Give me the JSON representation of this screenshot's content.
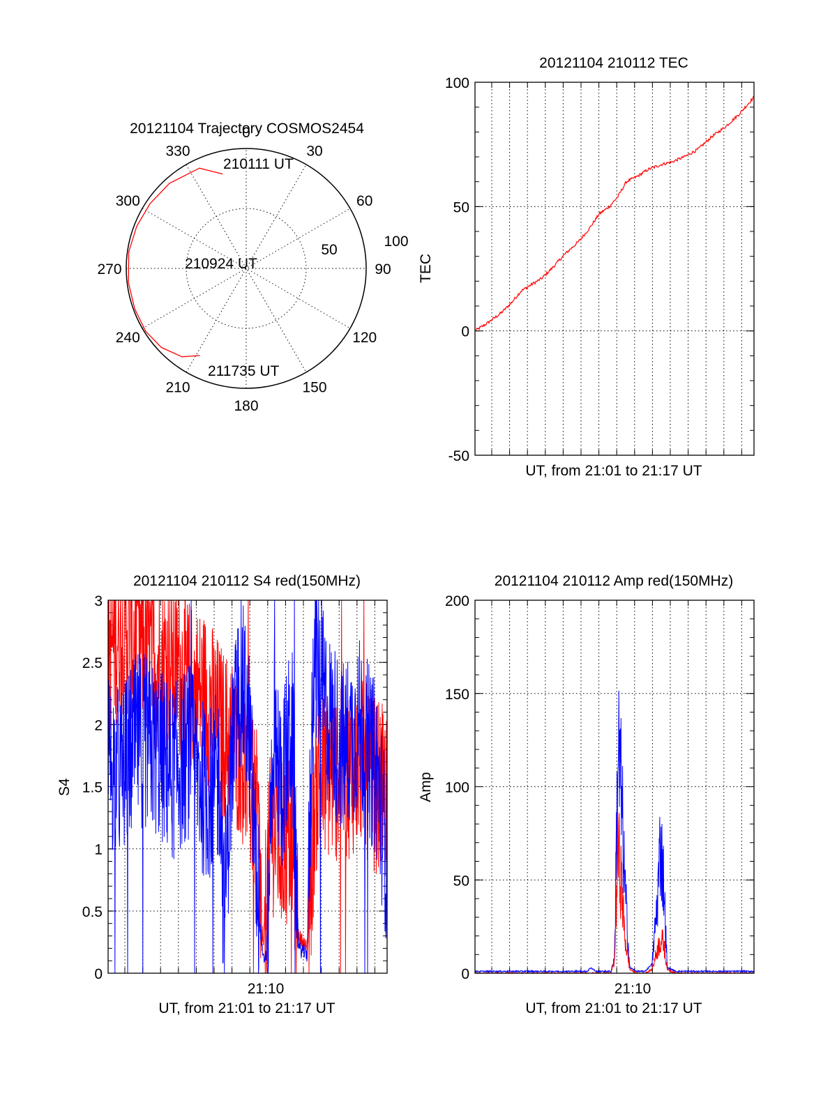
{
  "colors": {
    "red": "#ff0000",
    "blue": "#0000ff",
    "axis": "#000000"
  },
  "chart_data": [
    {
      "type": "polar",
      "id": "trajectory",
      "title": "20121104 Trajectory COSMOS2454",
      "angle_labels": [
        "0",
        "30",
        "60",
        "90",
        "120",
        "150",
        "180",
        "210",
        "240",
        "270",
        "300",
        "330"
      ],
      "radial_labels": [
        "50",
        "100"
      ],
      "radial_range": [
        0,
        100
      ],
      "annotations": [
        "210111 UT",
        "210924 UT",
        "211735 UT"
      ],
      "series": [
        {
          "color": "red",
          "az_el": [
            [
              346,
              17
            ],
            [
              335,
              7
            ],
            [
              318,
              4
            ],
            [
              304,
              3
            ],
            [
              291,
              2
            ],
            [
              278,
              1
            ],
            [
              263,
              1
            ],
            [
              250,
              1
            ],
            [
              238,
              1
            ],
            [
              227,
              3
            ],
            [
              216,
              8
            ],
            [
              208,
              16
            ]
          ]
        }
      ]
    },
    {
      "type": "line",
      "id": "tec",
      "title": "20121104 210112 TEC",
      "xlabel": "UT, from 21:01 to 21:17 UT",
      "ylabel": "TEC",
      "ylim": [
        -50,
        100
      ],
      "yticks": [
        "-50",
        "0",
        "50",
        "100"
      ],
      "grid": true,
      "xrange_minutes": [
        1.2,
        17.6
      ],
      "series": [
        {
          "color": "red",
          "x": [
            1.2,
            1.9,
            2.7,
            3.3,
            3.9,
            4.6,
            5.1,
            5.7,
            6.5,
            7.3,
            7.9,
            8.5,
            9.1,
            9.6,
            10.1,
            10.7,
            11.4,
            12.2,
            12.8,
            13.5,
            14.3,
            15.1,
            15.9,
            16.7,
            17.6
          ],
          "y": [
            0,
            3,
            7,
            11,
            16,
            19,
            21,
            25,
            31,
            36,
            41,
            47,
            50,
            54,
            60,
            62,
            65,
            67,
            68,
            70,
            73,
            78,
            82,
            87,
            94
          ]
        }
      ]
    },
    {
      "type": "line",
      "id": "s4",
      "title": "20121104 210112 S4 red(150MHz)",
      "xlabel": "UT, from 21:01 to 21:17 UT",
      "ylabel": "S4",
      "ylim": [
        0,
        3
      ],
      "yticks": [
        "0",
        "0.5",
        "1",
        "1.5",
        "2",
        "2.5",
        "3"
      ],
      "xtick_label": "21:10",
      "grid": true,
      "xrange_minutes": [
        1.2,
        17.6
      ],
      "series": [
        {
          "color": "red",
          "x": [
            1.2,
            2.0,
            3.0,
            4.0,
            5.0,
            6.0,
            7.0,
            8.0,
            9.0,
            9.5,
            10.0,
            10.3,
            10.8,
            11.4,
            12.0,
            12.4,
            12.9,
            13.4,
            14.0,
            15.0,
            16.0,
            17.0,
            17.6
          ],
          "y": [
            2.6,
            2.8,
            2.7,
            2.5,
            2.5,
            2.3,
            2.2,
            1.9,
            1.8,
            1.5,
            1.2,
            0.2,
            1.2,
            1.0,
            1.1,
            0.3,
            0.2,
            1.5,
            1.6,
            1.6,
            1.7,
            1.5,
            1.4
          ]
        },
        {
          "color": "blue",
          "x": [
            1.2,
            2.0,
            3.0,
            4.0,
            5.0,
            6.0,
            7.0,
            7.8,
            8.0,
            8.5,
            9.0,
            9.5,
            10.0,
            10.3,
            10.5,
            10.9,
            11.4,
            12.0,
            12.4,
            12.9,
            13.3,
            14.0,
            15.0,
            16.0,
            17.0,
            17.6
          ],
          "y": [
            1.7,
            1.6,
            1.9,
            1.8,
            1.6,
            1.8,
            1.4,
            1.6,
            0.45,
            1.8,
            2.4,
            1.9,
            0.6,
            0.1,
            0.15,
            1.9,
            1.5,
            2.0,
            0.2,
            0.15,
            2.7,
            2.1,
            1.8,
            2.0,
            1.6,
            0.9
          ]
        }
      ]
    },
    {
      "type": "line",
      "id": "amp",
      "title": "20121104 210112 Amp red(150MHz)",
      "xlabel": "UT, from 21:01 to 21:17 UT",
      "ylabel": "Amp",
      "ylim": [
        0,
        200
      ],
      "yticks": [
        "0",
        "50",
        "100",
        "150",
        "200"
      ],
      "xtick_label": "21:10",
      "grid": true,
      "xrange_minutes": [
        1.2,
        17.6
      ],
      "series": [
        {
          "color": "red",
          "x": [
            1.2,
            8.5,
            9.2,
            9.4,
            9.6,
            9.8,
            10.0,
            10.3,
            10.7,
            11.2,
            11.6,
            11.9,
            12.1,
            12.3,
            12.5,
            13.0,
            17.6
          ],
          "y": [
            0,
            0,
            0,
            8,
            85,
            60,
            25,
            2,
            0,
            0,
            2,
            15,
            22,
            20,
            2,
            0,
            0
          ]
        },
        {
          "color": "blue",
          "x": [
            1.2,
            5.0,
            7.8,
            8.0,
            8.3,
            9.2,
            9.4,
            9.6,
            9.8,
            10.0,
            10.3,
            10.7,
            11.2,
            11.6,
            11.9,
            12.1,
            12.3,
            12.5,
            13.0,
            17.6
          ],
          "y": [
            1,
            1,
            1,
            3,
            1,
            1,
            10,
            150,
            120,
            60,
            3,
            1,
            1,
            5,
            45,
            88,
            60,
            3,
            1,
            1
          ]
        }
      ]
    }
  ]
}
